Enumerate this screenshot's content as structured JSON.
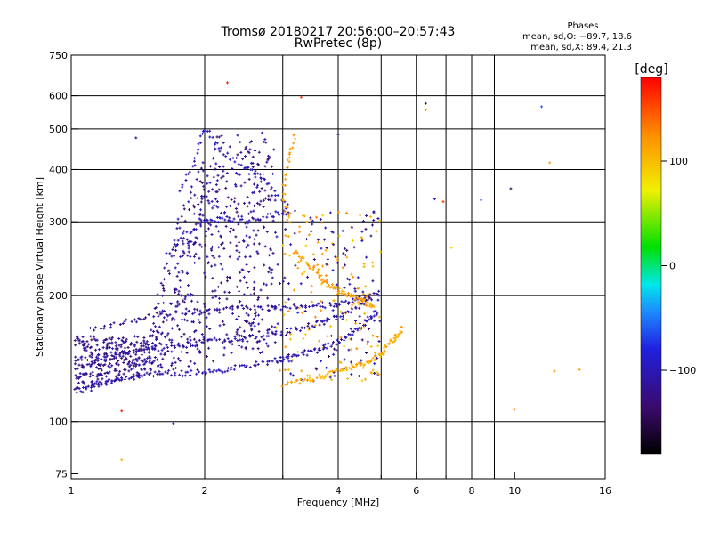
{
  "header": {
    "title_line1": "Tromsø 20180217 20:56:00–20:57:43",
    "title_line2": "RwPretec (8p)"
  },
  "info_box": {
    "heading": "Phases",
    "line_o": "mean, sd,O: −89.7, 18.6",
    "line_x": "mean, sd,X: 89.4, 21.3"
  },
  "chart_data": {
    "type": "scatter",
    "xlabel": "Frequency [MHz]",
    "ylabel": "Stationary phase Virtual Height [km]",
    "x_scale": "log",
    "y_scale": "log",
    "xlim": [
      1,
      16
    ],
    "ylim": [
      73,
      750
    ],
    "x_ticks": [
      1,
      2,
      4,
      6,
      8,
      10,
      16
    ],
    "x_tick_labels": [
      "1",
      "2",
      "4",
      "6",
      "8",
      "10",
      "16"
    ],
    "x_minor_ticks": [
      3,
      5,
      7,
      9
    ],
    "y_ticks": [
      75,
      100,
      200,
      300,
      400,
      500,
      600,
      750
    ],
    "y_tick_labels": [
      "75",
      "100",
      "200",
      "300",
      "400",
      "500",
      "600",
      "750"
    ],
    "grid": true,
    "grid_x": [
      2,
      3,
      4,
      5,
      6,
      7,
      8,
      9
    ],
    "grid_y": [
      100,
      200,
      300,
      400,
      500,
      600
    ],
    "colorbar": {
      "label": "[deg]",
      "range": [
        -180,
        180
      ],
      "ticks": [
        100,
        0,
        -100
      ],
      "tick_labels": [
        "100",
        "0",
        "−100"
      ],
      "colormap": [
        "#000000",
        "#3a0a6a",
        "#2020e0",
        "#1c8cff",
        "#00e8e8",
        "#00e000",
        "#f0f000",
        "#ff8c00",
        "#ff0000"
      ]
    },
    "traces": [
      {
        "name": "O-mode lower trace",
        "phase": -105,
        "points": [
          [
            1.02,
            118
          ],
          [
            1.1,
            120
          ],
          [
            1.2,
            124
          ],
          [
            1.35,
            127
          ],
          [
            1.5,
            129
          ],
          [
            1.7,
            130
          ],
          [
            1.9,
            131
          ],
          [
            2.1,
            132
          ],
          [
            2.3,
            134
          ],
          [
            2.6,
            137
          ],
          [
            2.9,
            140
          ],
          [
            3.1,
            142
          ],
          [
            3.4,
            145
          ],
          [
            3.7,
            150
          ],
          [
            4.0,
            155
          ],
          [
            4.3,
            163
          ],
          [
            4.6,
            172
          ],
          [
            4.9,
            185
          ]
        ]
      },
      {
        "name": "O-mode second trace",
        "phase": -110,
        "points": [
          [
            1.05,
            135
          ],
          [
            1.2,
            142
          ],
          [
            1.4,
            147
          ],
          [
            1.6,
            150
          ],
          [
            1.8,
            152
          ],
          [
            2.0,
            155
          ],
          [
            2.3,
            158
          ],
          [
            2.6,
            160
          ],
          [
            3.0,
            163
          ],
          [
            3.3,
            167
          ],
          [
            3.6,
            172
          ],
          [
            4.0,
            178
          ],
          [
            4.4,
            188
          ],
          [
            4.8,
            200
          ]
        ]
      },
      {
        "name": "O-mode third trace",
        "phase": -115,
        "points": [
          [
            1.1,
            165
          ],
          [
            1.3,
            172
          ],
          [
            1.5,
            178
          ],
          [
            1.8,
            182
          ],
          [
            2.0,
            183
          ],
          [
            2.3,
            186
          ],
          [
            2.6,
            187
          ],
          [
            3.0,
            187
          ],
          [
            3.4,
            188
          ],
          [
            3.8,
            190
          ],
          [
            4.2,
            193
          ],
          [
            4.6,
            197
          ],
          [
            5.0,
            203
          ]
        ]
      },
      {
        "name": "O-mode upper echoes",
        "phase": -100,
        "points": [
          [
            1.65,
            250
          ],
          [
            1.8,
            280
          ],
          [
            2.0,
            300
          ],
          [
            2.2,
            305
          ],
          [
            2.5,
            300
          ],
          [
            2.8,
            310
          ],
          [
            3.1,
            320
          ],
          [
            2.7,
            380
          ],
          [
            2.5,
            400
          ],
          [
            2.2,
            440
          ],
          [
            2.0,
            500
          ],
          [
            1.9,
            420
          ],
          [
            1.75,
            350
          ]
        ]
      },
      {
        "name": "X-mode lower trace",
        "phase": 110,
        "points": [
          [
            3.0,
            122
          ],
          [
            3.3,
            125
          ],
          [
            3.6,
            128
          ],
          [
            3.9,
            131
          ],
          [
            4.2,
            134
          ],
          [
            4.5,
            137
          ],
          [
            4.8,
            140
          ],
          [
            5.0,
            145
          ],
          [
            5.2,
            152
          ],
          [
            5.4,
            160
          ],
          [
            5.6,
            168
          ]
        ]
      },
      {
        "name": "X-mode upper trace",
        "phase": 115,
        "points": [
          [
            3.2,
            255
          ],
          [
            3.4,
            240
          ],
          [
            3.6,
            225
          ],
          [
            3.8,
            212
          ],
          [
            4.0,
            205
          ],
          [
            4.2,
            200
          ],
          [
            4.4,
            196
          ],
          [
            4.6,
            192
          ],
          [
            4.8,
            188
          ],
          [
            3.1,
            300
          ],
          [
            3.0,
            350
          ],
          [
            3.1,
            420
          ],
          [
            3.2,
            490
          ]
        ]
      }
    ],
    "isolated_points": [
      {
        "x": 2.25,
        "y": 645,
        "phase": 170
      },
      {
        "x": 3.3,
        "y": 595,
        "phase": 160
      },
      {
        "x": 6.3,
        "y": 555,
        "phase": 120
      },
      {
        "x": 6.3,
        "y": 575,
        "phase": -140
      },
      {
        "x": 6.6,
        "y": 340,
        "phase": -90
      },
      {
        "x": 6.9,
        "y": 335,
        "phase": 160
      },
      {
        "x": 7.2,
        "y": 260,
        "phase": 80
      },
      {
        "x": 8.4,
        "y": 338,
        "phase": -60
      },
      {
        "x": 9.8,
        "y": 360,
        "phase": -150
      },
      {
        "x": 11.5,
        "y": 565,
        "phase": -60
      },
      {
        "x": 12.0,
        "y": 415,
        "phase": 120
      },
      {
        "x": 12.3,
        "y": 132,
        "phase": 120
      },
      {
        "x": 14.0,
        "y": 133,
        "phase": 120
      },
      {
        "x": 10.0,
        "y": 107,
        "phase": 130
      },
      {
        "x": 1.3,
        "y": 81,
        "phase": 110
      },
      {
        "x": 1.4,
        "y": 476,
        "phase": -120
      },
      {
        "x": 4.0,
        "y": 485,
        "phase": -150
      },
      {
        "x": 1.3,
        "y": 106,
        "phase": 170
      },
      {
        "x": 1.7,
        "y": 99,
        "phase": -120
      }
    ]
  }
}
